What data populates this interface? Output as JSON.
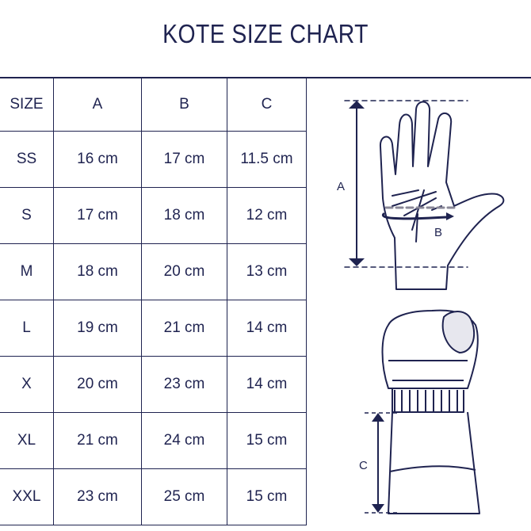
{
  "title": "KOTE SIZE CHART",
  "table": {
    "headers": [
      "SIZE",
      "A",
      "B",
      "C"
    ],
    "rows": [
      [
        "SS",
        "16 cm",
        "17 cm",
        "11.5 cm"
      ],
      [
        "S",
        "17 cm",
        "18 cm",
        "12 cm"
      ],
      [
        "M",
        "18 cm",
        "20 cm",
        "13 cm"
      ],
      [
        "L",
        "19 cm",
        "21 cm",
        "14 cm"
      ],
      [
        "X",
        "20 cm",
        "23 cm",
        "14 cm"
      ],
      [
        "XL",
        "21 cm",
        "24 cm",
        "15 cm"
      ],
      [
        "XXL",
        "23 cm",
        "25 cm",
        "15 cm"
      ]
    ]
  },
  "diagram": {
    "label_a": "A",
    "label_b": "B",
    "label_c": "C"
  },
  "colors": {
    "ink": "#1f2350",
    "dashed": "#8a8898"
  }
}
